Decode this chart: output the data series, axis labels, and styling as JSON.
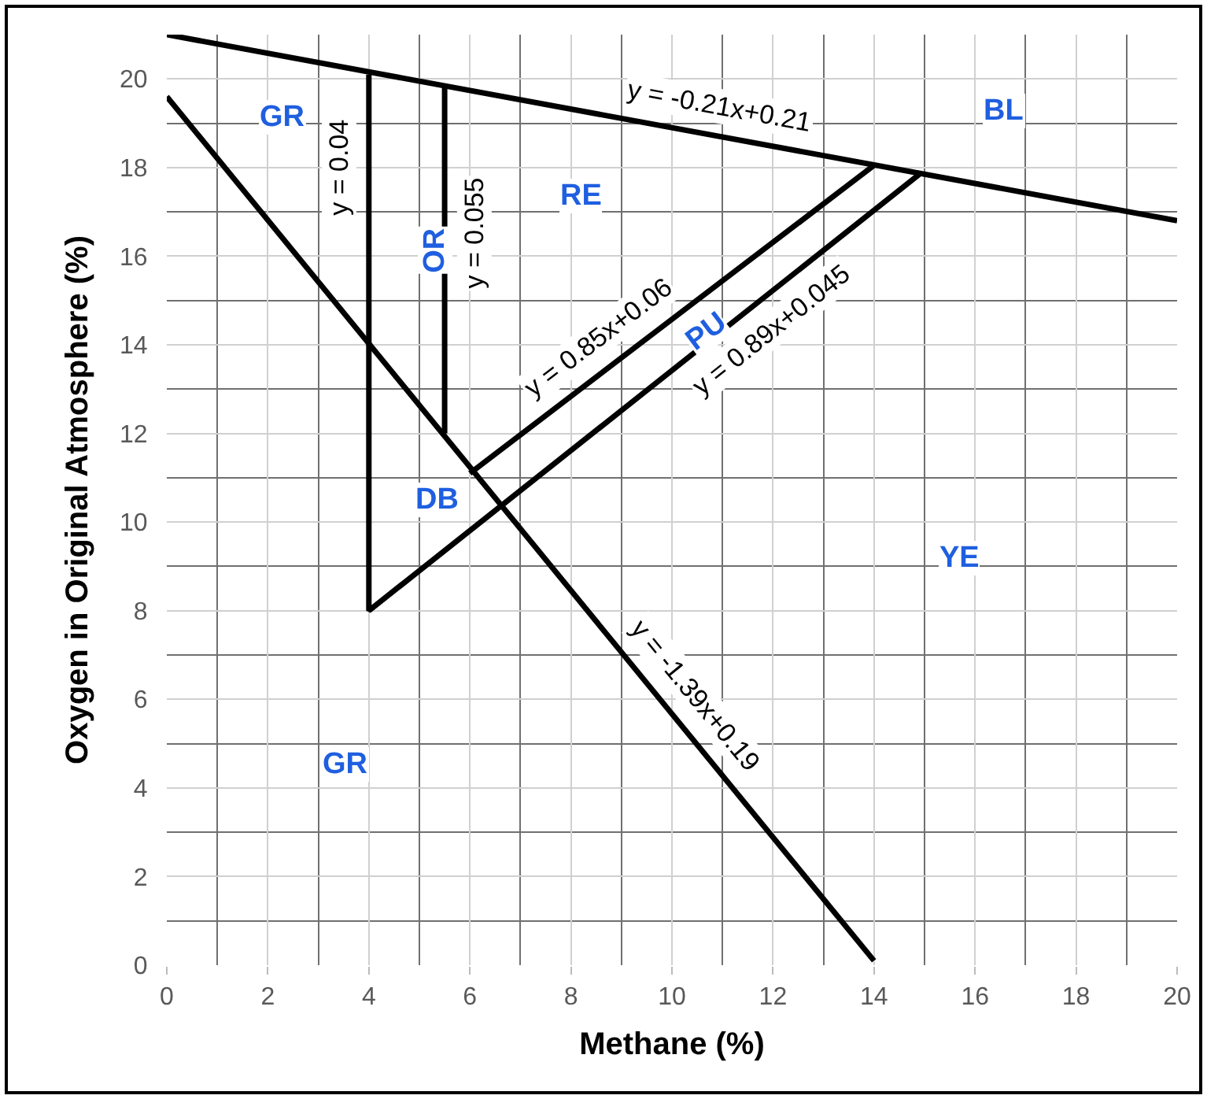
{
  "chart_data": {
    "type": "line",
    "xlabel": "Methane (%)",
    "ylabel": "Oxygen in Original Atmosphere (%)",
    "xlim": [
      0,
      20
    ],
    "ylim": [
      0,
      21
    ],
    "xticks": [
      0,
      2,
      4,
      6,
      8,
      10,
      12,
      14,
      16,
      18,
      20
    ],
    "yticks": [
      0,
      2,
      4,
      6,
      8,
      10,
      12,
      14,
      16,
      18,
      20
    ],
    "grid": true,
    "marker": "none",
    "line_style": "solid",
    "series": [
      {
        "color": "#000000",
        "x": [
          0,
          20
        ],
        "values": [
          21,
          16.8
        ]
      },
      {
        "color": "#000000",
        "x": [
          0,
          14
        ],
        "values": [
          19.6,
          0.1
        ]
      },
      {
        "color": "#000000",
        "x": [
          4,
          4,
          14.9
        ],
        "values": [
          20.1,
          8,
          17.85
        ]
      },
      {
        "color": "#000000",
        "x": [
          5.5,
          5.5
        ],
        "values": [
          19.85,
          12
        ]
      },
      {
        "color": "#000000",
        "x": [
          6,
          14
        ],
        "values": [
          11.1,
          18.05
        ]
      }
    ],
    "annotations": [
      {
        "text": "y = -0.21x+0.21",
        "x": 10.84,
        "y": 18.72
      },
      {
        "text": "y = 0.04",
        "x": 4,
        "y": 18
      },
      {
        "text": "y = 0.055",
        "x": 5.5,
        "y": 16.5
      },
      {
        "text": "y = 0.85x+0.06",
        "x": 8.9,
        "y": 13.62
      },
      {
        "text": "y = 0.89x+0.045",
        "x": 11.6,
        "y": 14.87
      },
      {
        "text": "y = -1.39x+0.19",
        "x": 10,
        "y": 5.67
      },
      "GR",
      "RE",
      "BL",
      "OR",
      "PU",
      "DB",
      "YE",
      "GR"
    ]
  }
}
